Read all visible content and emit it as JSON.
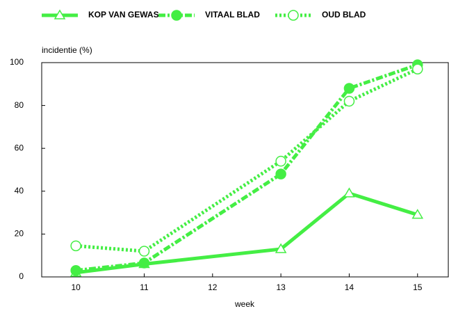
{
  "chart_data": {
    "type": "line",
    "x": [
      10,
      11,
      13,
      14,
      15
    ],
    "series": [
      {
        "name": "KOP VAN GEWAS",
        "color": "#44ee44",
        "linestyle": "solid",
        "marker": "triangle",
        "values": [
          2,
          6,
          13,
          39,
          29
        ]
      },
      {
        "name": "VITAAL BLAD",
        "color": "#44ee44",
        "linestyle": "dashdot",
        "marker": "circle-filled",
        "values": [
          3,
          6.5,
          48,
          88,
          99
        ]
      },
      {
        "name": "OUD BLAD",
        "color": "#44ee44",
        "linestyle": "dotted",
        "marker": "circle-open",
        "values": [
          14.5,
          12,
          54,
          82,
          97
        ]
      }
    ],
    "y_label": "incidentie (%)",
    "x_label": "week",
    "xlim": [
      9.5,
      15.45
    ],
    "xticks": [
      10,
      11,
      12,
      13,
      14,
      15
    ],
    "ylim": [
      0,
      100
    ],
    "yticks": [
      0,
      20,
      40,
      60,
      80,
      100
    ],
    "grid": false,
    "legend": "top"
  }
}
